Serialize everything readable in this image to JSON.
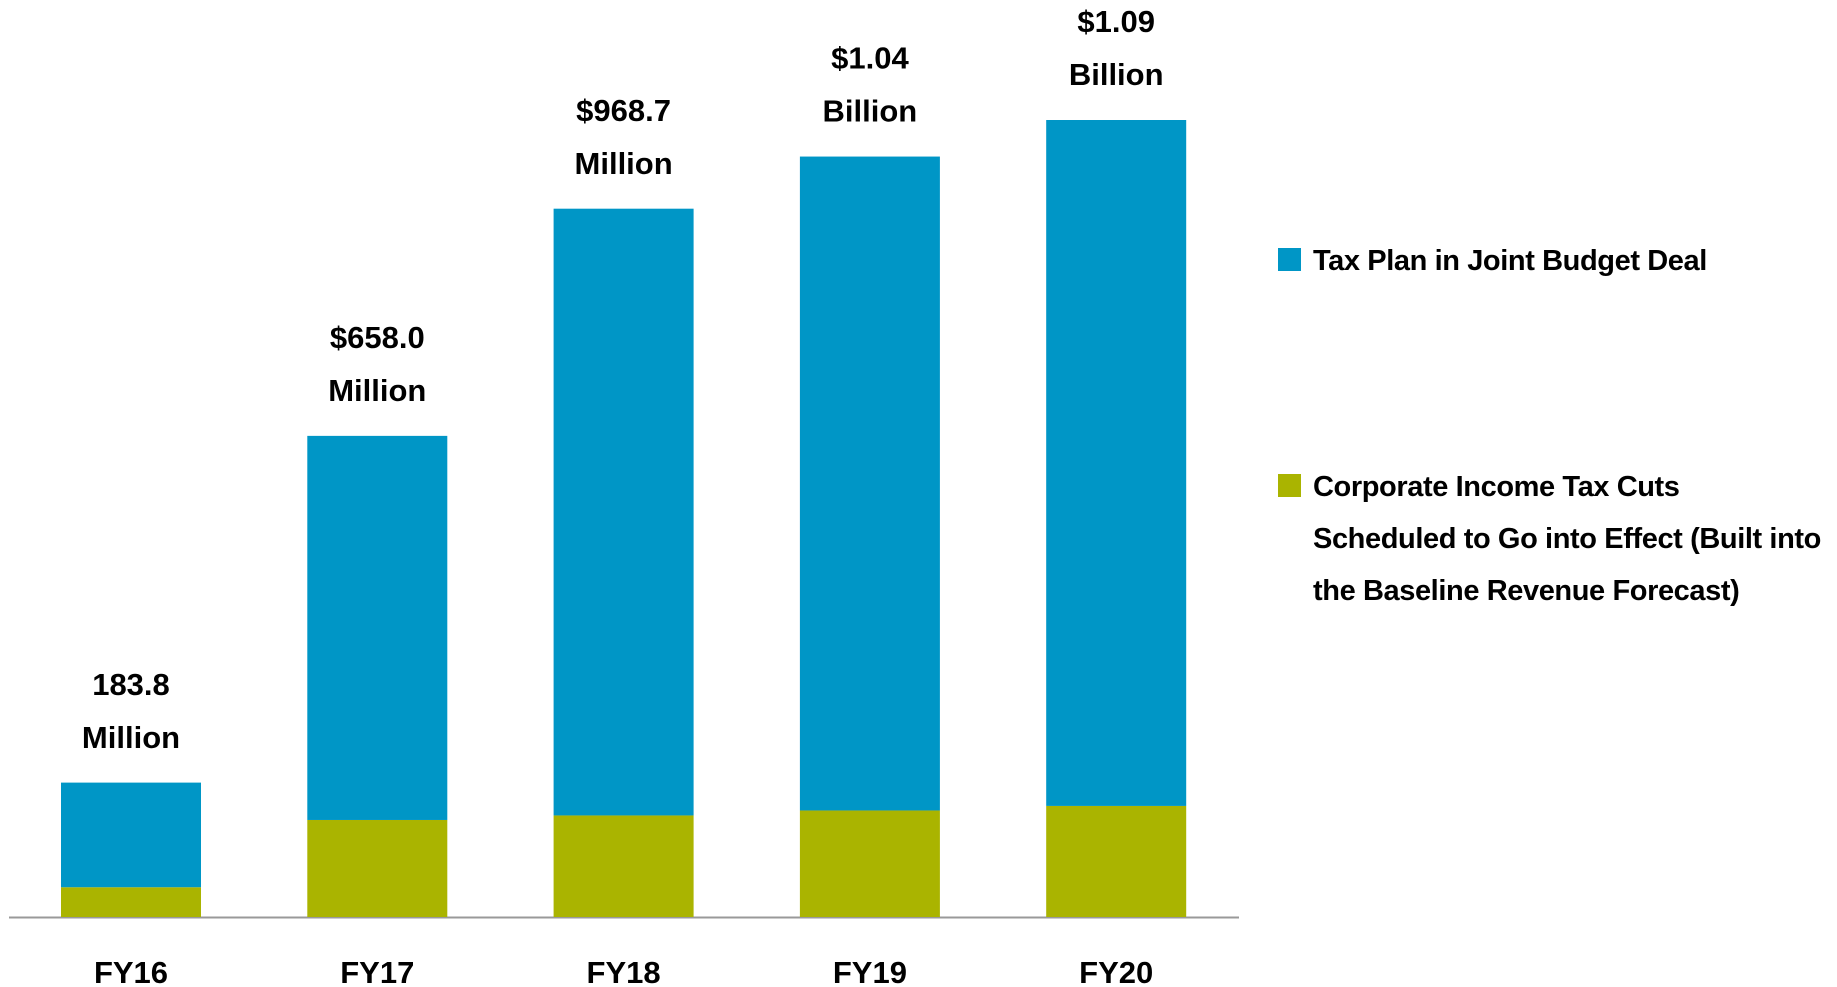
{
  "chart_data": {
    "type": "bar",
    "stacked": true,
    "categories": [
      "FY16",
      "FY17",
      "FY18",
      "FY19",
      "FY20"
    ],
    "series": [
      {
        "name": "Corporate Income Tax Cuts Scheduled to Go into Effect (Built into the Baseline Revenue Forecast)",
        "color": "#aab400",
        "values": [
          40.7,
          132.7,
          138.9,
          145.7,
          151.9
        ]
      },
      {
        "name": "Tax Plan in Joint Budget Deal",
        "color": "#0096c6",
        "values": [
          143.1,
          525.3,
          829.8,
          894.3,
          938.1
        ]
      }
    ],
    "totals": [
      183.8,
      658.0,
      968.7,
      1040,
      1090
    ],
    "total_labels": [
      [
        "183.8",
        "Million"
      ],
      [
        "$658.0",
        "Million"
      ],
      [
        "$968.7",
        "Million"
      ],
      [
        "$1.04",
        "Billion"
      ],
      [
        "$1.09",
        "Billion"
      ]
    ],
    "legend": "right"
  }
}
